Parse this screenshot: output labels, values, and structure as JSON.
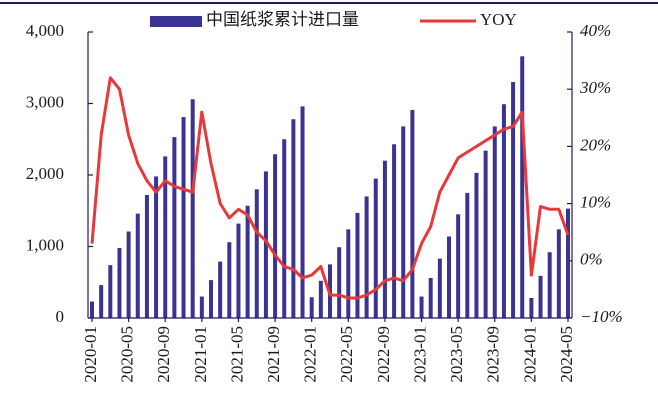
{
  "chart_data": {
    "type": "bar_line",
    "categories": [
      "2020-01",
      null,
      null,
      null,
      "2020-05",
      null,
      null,
      null,
      "2020-09",
      null,
      null,
      null,
      "2021-01",
      null,
      null,
      null,
      "2021-05",
      null,
      null,
      null,
      "2021-09",
      null,
      null,
      null,
      "2022-01",
      null,
      null,
      null,
      "2022-05",
      null,
      null,
      null,
      "2022-09",
      null,
      null,
      null,
      "2023-01",
      null,
      null,
      null,
      "2023-05",
      null,
      null,
      null,
      "2023-09",
      null,
      null,
      null,
      "2024-01",
      null,
      null,
      null,
      "2024-05"
    ],
    "series": [
      {
        "name": "中国纸浆累计进口量",
        "type": "bar",
        "color": "#3b3391",
        "axis": "y",
        "values": [
          230,
          460,
          740,
          980,
          1210,
          1460,
          1720,
          1980,
          2260,
          2530,
          2810,
          3060,
          300,
          530,
          790,
          1060,
          1320,
          1570,
          1800,
          2050,
          2290,
          2500,
          2780,
          2960,
          290,
          520,
          750,
          990,
          1240,
          1470,
          1700,
          1950,
          2200,
          2430,
          2680,
          2910,
          300,
          560,
          830,
          1140,
          1450,
          1750,
          2030,
          2340,
          2680,
          2990,
          3300,
          3660,
          280,
          590,
          920,
          1240,
          1530
        ]
      },
      {
        "name": "YOY",
        "type": "line",
        "color": "#e8383a",
        "axis": "y2",
        "values": [
          3,
          22,
          32,
          30,
          22,
          17,
          14,
          12,
          14,
          13,
          12.5,
          12,
          26,
          17,
          10,
          7.5,
          9,
          8,
          5,
          3.5,
          1,
          -1,
          -1.5,
          -3,
          -2.5,
          -1,
          -6,
          -6,
          -6.5,
          -6.5,
          -6,
          -5,
          -3.5,
          -3,
          -3.5,
          -1.5,
          3,
          6,
          12,
          15,
          18,
          19,
          20,
          21,
          22,
          23,
          23.5,
          26,
          -2.5,
          9.5,
          9,
          9,
          4.5
        ]
      }
    ],
    "ylim": [
      0,
      4000
    ],
    "yticks": [
      0,
      {
        "value": 1000,
        "label": "1,000"
      },
      {
        "value": 2000,
        "label": "2,000"
      },
      {
        "value": 3000,
        "label": "3,000"
      },
      {
        "value": 4000,
        "label": "4,000"
      }
    ],
    "y2lim": [
      -10,
      40
    ],
    "y2ticks": [
      {
        "value": -10,
        "label": "−10%"
      },
      {
        "value": 0,
        "label": "0%"
      },
      {
        "value": 10,
        "label": "10%"
      },
      {
        "value": 20,
        "label": "20%"
      },
      {
        "value": 30,
        "label": "30%"
      },
      {
        "value": 40,
        "label": "40%"
      }
    ],
    "legend": "top"
  }
}
